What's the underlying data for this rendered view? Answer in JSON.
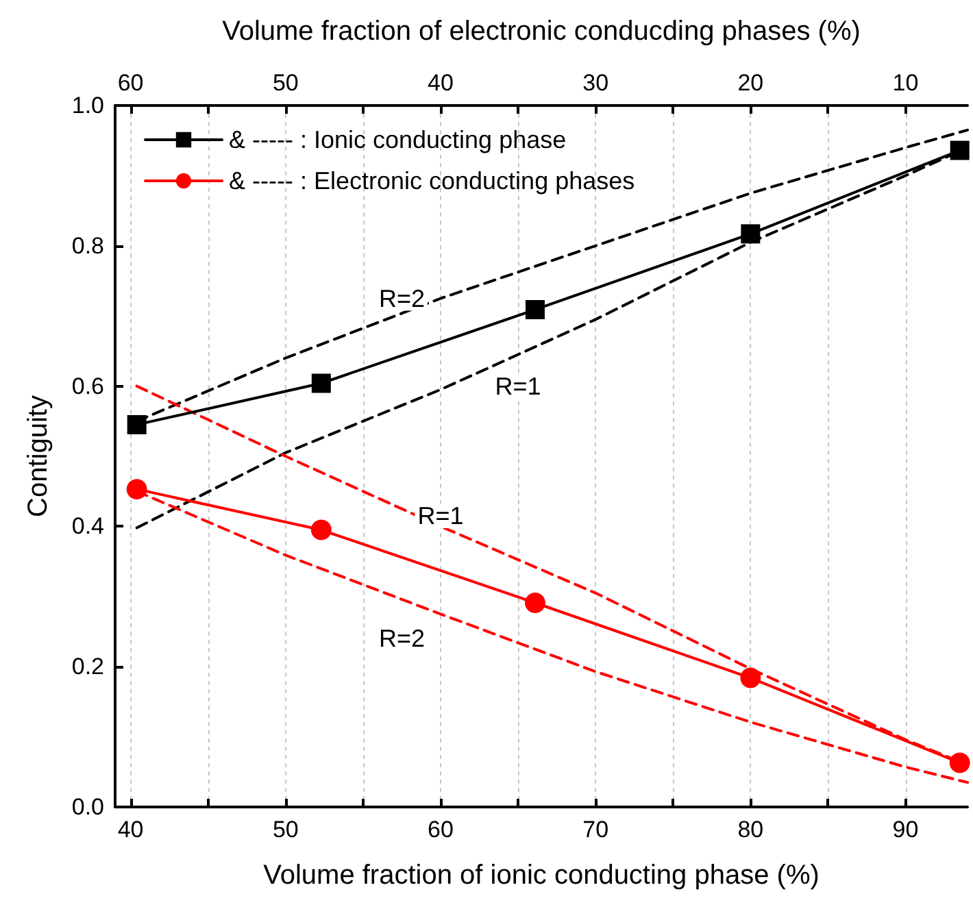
{
  "chart_data": {
    "type": "line",
    "xlabel": "Volume fraction of ionic conducting phase (%)",
    "x2label": "Volume fraction of electronic conducding phases (%)",
    "ylabel": "Contiguity",
    "xlim": [
      39,
      94
    ],
    "xticks": [
      40,
      {
        "value": 45,
        "label": null
      },
      50,
      {
        "value": 55,
        "label": null
      },
      60,
      {
        "value": 65,
        "label": null
      },
      70,
      {
        "value": 75,
        "label": null
      },
      80,
      {
        "value": 85,
        "label": null
      },
      90
    ],
    "x2lim": [
      61,
      6
    ],
    "x2ticks": [
      60,
      {
        "value": 55,
        "label": null
      },
      50,
      {
        "value": 45,
        "label": null
      },
      40,
      {
        "value": 35,
        "label": null
      },
      30,
      {
        "value": 25,
        "label": null
      },
      20,
      {
        "value": 15,
        "label": null
      },
      10
    ],
    "ylim": [
      0,
      1
    ],
    "yticks": [
      {
        "value": 0,
        "label": "0.0"
      },
      {
        "value": 0.2,
        "label": "0.2"
      },
      {
        "value": 0.4,
        "label": "0.4"
      },
      {
        "value": 0.6,
        "label": "0.6"
      },
      {
        "value": 0.8,
        "label": "0.8"
      },
      {
        "value": 1,
        "label": "1.0"
      }
    ],
    "grid": "x",
    "legend": "top left",
    "series": [
      {
        "name": "& ----- : Ionic conducting phase",
        "color": "#000000",
        "marker": "square",
        "line_style": "solid",
        "x": [
          40.4,
          52.3,
          66.1,
          80,
          93.5
        ],
        "values": [
          0.545,
          0.604,
          0.709,
          0.817,
          0.936
        ]
      },
      {
        "name": "& ----- : Electronic conducting phases",
        "color": "#ff0000",
        "marker": "circle",
        "line_style": "solid",
        "x": [
          40.4,
          52.3,
          66.1,
          80,
          93.5
        ],
        "values": [
          0.453,
          0.395,
          0.291,
          0.184,
          0.063
        ]
      },
      {
        "color": "#000000",
        "marker": "none",
        "line_style": "dashed",
        "x": [
          40.4,
          50,
          60,
          70,
          80,
          90,
          94
        ],
        "values": [
          0.55,
          0.64,
          0.725,
          0.8,
          0.875,
          0.94,
          0.965
        ]
      },
      {
        "color": "#000000",
        "marker": "none",
        "line_style": "dashed",
        "x": [
          40.4,
          50,
          60,
          70,
          80,
          90,
          93.5
        ],
        "values": [
          0.398,
          0.505,
          0.595,
          0.695,
          0.805,
          0.9,
          0.935
        ]
      },
      {
        "color": "#ff0000",
        "marker": "none",
        "line_style": "dashed",
        "x": [
          40.4,
          50,
          60,
          70,
          80,
          90,
          94
        ],
        "values": [
          0.6,
          0.5,
          0.4,
          0.305,
          0.197,
          0.096,
          0.06
        ]
      },
      {
        "color": "#ff0000",
        "marker": "none",
        "line_style": "dashed",
        "x": [
          40.4,
          50,
          60,
          70,
          80,
          90,
          94
        ],
        "values": [
          0.45,
          0.359,
          0.275,
          0.193,
          0.121,
          0.057,
          0.035
        ]
      }
    ],
    "annotations": [
      {
        "text": "R=2",
        "x": 57.5,
        "y": 0.725
      },
      {
        "text": "R=1",
        "x": 65,
        "y": 0.6
      },
      {
        "text": "R=1",
        "x": 60,
        "y": 0.415
      },
      {
        "text": "R=2",
        "x": 57.5,
        "y": 0.24
      }
    ]
  }
}
